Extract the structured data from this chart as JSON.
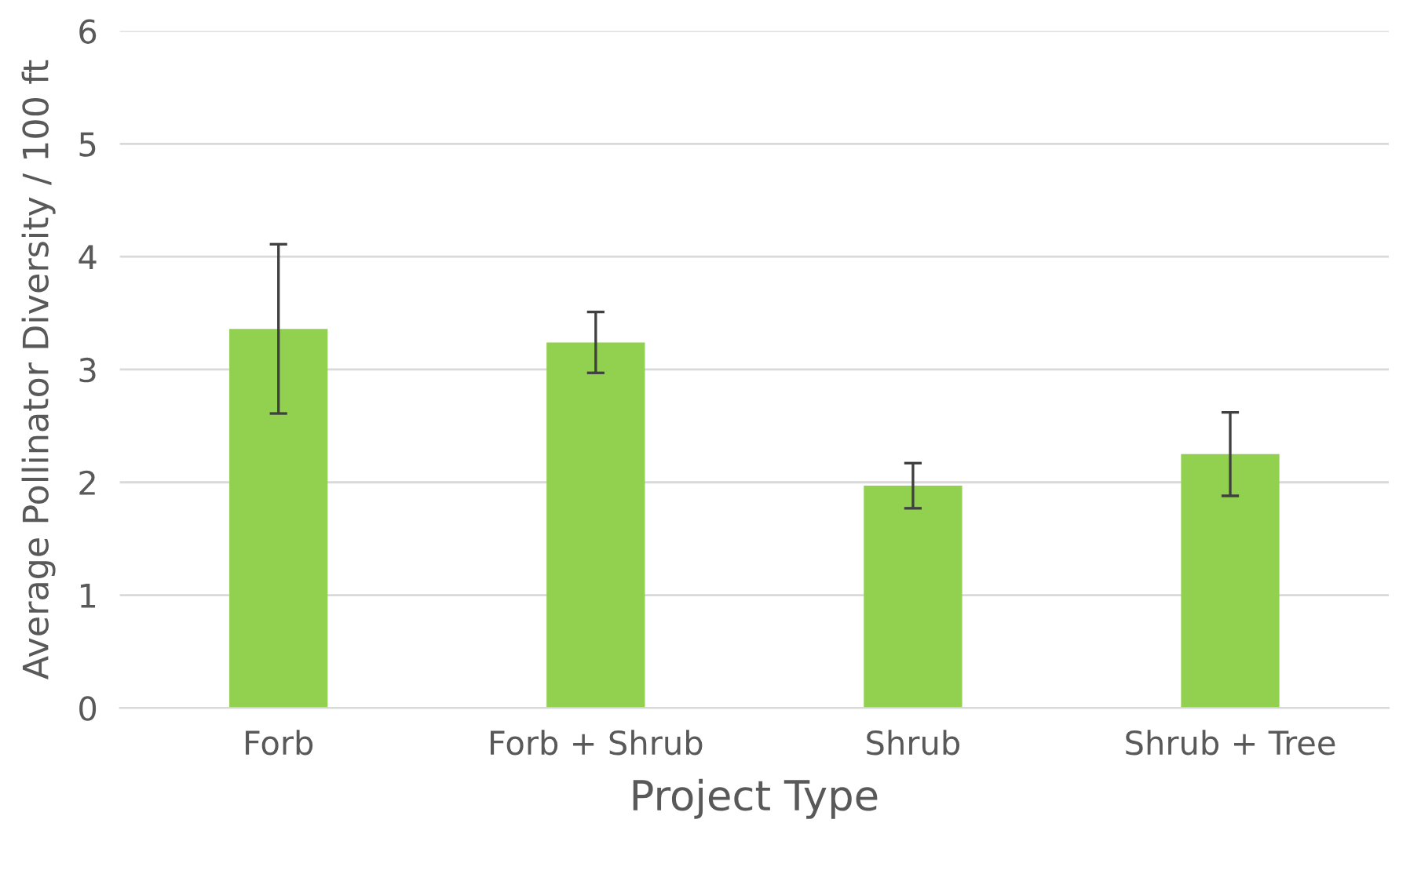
{
  "chart_data": {
    "type": "bar",
    "xlabel": "Project Type",
    "ylabel": "Average Pollinator Diversity / 100 ft",
    "categories": [
      "Forb",
      "Forb + Shrub",
      "Shrub",
      "Shrub + Tree"
    ],
    "values": [
      3.36,
      3.24,
      1.97,
      2.25
    ],
    "errors": [
      0.75,
      0.27,
      0.2,
      0.37
    ],
    "color": "#92d050",
    "ylim": [
      0,
      6
    ],
    "yticks": [
      0,
      1,
      2,
      3,
      4,
      5,
      6
    ],
    "grid": "y"
  }
}
